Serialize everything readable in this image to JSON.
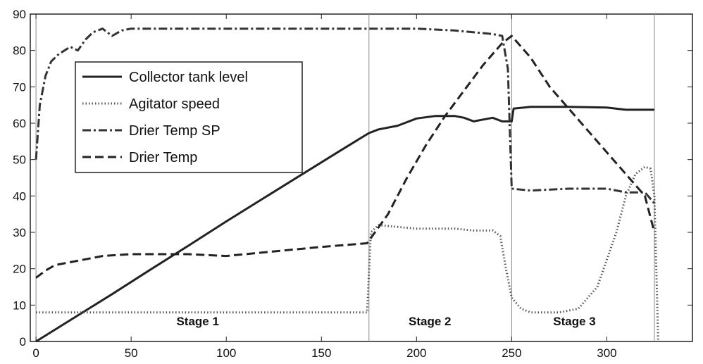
{
  "chart_data": {
    "type": "line",
    "title": "",
    "xlabel": "",
    "ylabel": "",
    "xlim": [
      -3,
      345
    ],
    "ylim": [
      0,
      90
    ],
    "x_ticks": [
      0,
      50,
      100,
      150,
      200,
      250,
      300
    ],
    "y_ticks": [
      0,
      10,
      20,
      30,
      40,
      50,
      60,
      70,
      80,
      90
    ],
    "grid": false,
    "legend_position": "top-left",
    "stage_boundaries": [
      0,
      175,
      250,
      325
    ],
    "stages": [
      {
        "label": "Stage 1",
        "x": 85
      },
      {
        "label": "Stage 2",
        "x": 207
      },
      {
        "label": "Stage 3",
        "x": 283
      }
    ],
    "series": [
      {
        "name": "Collector tank level",
        "style": "solid",
        "color": "#222222",
        "points": [
          [
            0,
            0
          ],
          [
            20,
            6.5
          ],
          [
            40,
            13
          ],
          [
            60,
            19.7
          ],
          [
            80,
            26.3
          ],
          [
            100,
            33
          ],
          [
            120,
            39.5
          ],
          [
            140,
            46
          ],
          [
            160,
            52.5
          ],
          [
            175,
            57.3
          ],
          [
            180,
            58.3
          ],
          [
            190,
            59.3
          ],
          [
            195,
            60.3
          ],
          [
            200,
            61.3
          ],
          [
            210,
            62
          ],
          [
            220,
            62
          ],
          [
            225,
            61.5
          ],
          [
            230,
            60.5
          ],
          [
            235,
            61
          ],
          [
            240,
            61.5
          ],
          [
            245,
            60.5
          ],
          [
            250,
            60.5
          ],
          [
            251,
            64
          ],
          [
            260,
            64.5
          ],
          [
            280,
            64.5
          ],
          [
            300,
            64.3
          ],
          [
            310,
            63.7
          ],
          [
            325,
            63.7
          ]
        ]
      },
      {
        "name": "Agitator speed",
        "style": "dotted",
        "color": "#555555",
        "points": [
          [
            0,
            8
          ],
          [
            50,
            8
          ],
          [
            100,
            8
          ],
          [
            150,
            8
          ],
          [
            174,
            8
          ],
          [
            176,
            30
          ],
          [
            180,
            32
          ],
          [
            200,
            31
          ],
          [
            210,
            31
          ],
          [
            220,
            31
          ],
          [
            230,
            30.5
          ],
          [
            240,
            30.5
          ],
          [
            244,
            29
          ],
          [
            247,
            20
          ],
          [
            250,
            12
          ],
          [
            255,
            9
          ],
          [
            260,
            8
          ],
          [
            275,
            8
          ],
          [
            285,
            9
          ],
          [
            295,
            15
          ],
          [
            305,
            30
          ],
          [
            310,
            40
          ],
          [
            315,
            46
          ],
          [
            320,
            48
          ],
          [
            323,
            47.5
          ],
          [
            325,
            40
          ],
          [
            326,
            20
          ],
          [
            327,
            0
          ]
        ]
      },
      {
        "name": "Drier Temp SP",
        "style": "dashdot",
        "color": "#333333",
        "points": [
          [
            0,
            50
          ],
          [
            2,
            65
          ],
          [
            5,
            73
          ],
          [
            8,
            77
          ],
          [
            12,
            79
          ],
          [
            15,
            80
          ],
          [
            18,
            81
          ],
          [
            22,
            80
          ],
          [
            26,
            83
          ],
          [
            30,
            85
          ],
          [
            35,
            86
          ],
          [
            40,
            84
          ],
          [
            45,
            85.5
          ],
          [
            50,
            86
          ],
          [
            100,
            86
          ],
          [
            150,
            86
          ],
          [
            175,
            86
          ],
          [
            200,
            86
          ],
          [
            220,
            85.5
          ],
          [
            240,
            84.5
          ],
          [
            245,
            84
          ],
          [
            248,
            75
          ],
          [
            250,
            42
          ],
          [
            260,
            41.5
          ],
          [
            280,
            42
          ],
          [
            300,
            42
          ],
          [
            310,
            41
          ],
          [
            320,
            41
          ],
          [
            325,
            38
          ]
        ]
      },
      {
        "name": "Drier Temp",
        "style": "dashed",
        "color": "#222222",
        "points": [
          [
            0,
            17.5
          ],
          [
            5,
            19.5
          ],
          [
            10,
            21
          ],
          [
            25,
            22.5
          ],
          [
            35,
            23.5
          ],
          [
            50,
            24
          ],
          [
            80,
            24
          ],
          [
            100,
            23.5
          ],
          [
            120,
            24.5
          ],
          [
            150,
            26
          ],
          [
            174,
            27
          ],
          [
            185,
            35
          ],
          [
            195,
            45
          ],
          [
            205,
            54
          ],
          [
            215,
            62
          ],
          [
            225,
            69
          ],
          [
            235,
            76
          ],
          [
            245,
            82
          ],
          [
            250,
            84
          ],
          [
            260,
            78
          ],
          [
            270,
            70
          ],
          [
            280,
            64
          ],
          [
            290,
            58
          ],
          [
            300,
            52
          ],
          [
            310,
            46
          ],
          [
            320,
            40
          ],
          [
            325,
            30
          ]
        ]
      }
    ]
  }
}
